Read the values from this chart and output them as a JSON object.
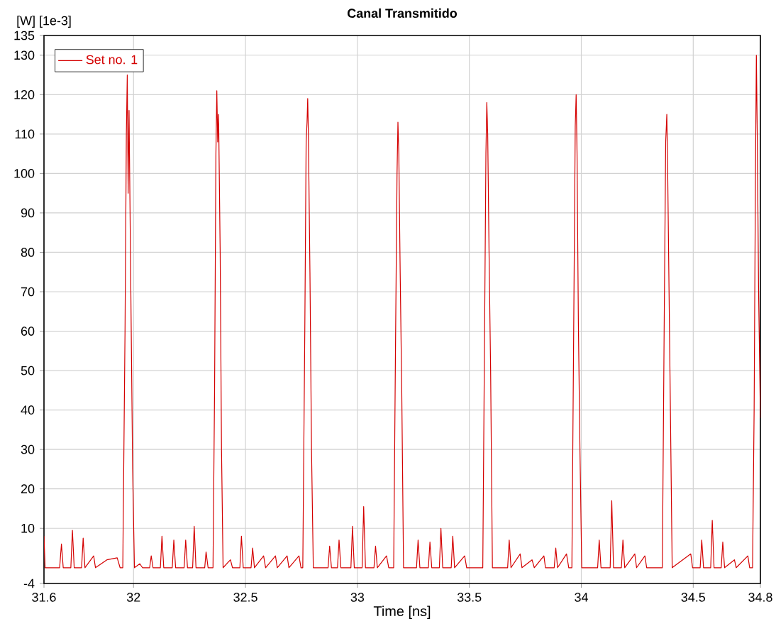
{
  "chart_data": {
    "type": "line",
    "title": "Canal Transmitido",
    "xlabel": "Time [ns]",
    "ylabel": "[W] [1e-3]",
    "xlim": [
      31.6,
      34.8
    ],
    "xticks": [
      31.6,
      32,
      32.5,
      33,
      33.5,
      34,
      34.5,
      34.8
    ],
    "ylim": [
      -4,
      135
    ],
    "yticks": [
      -4,
      10,
      20,
      30,
      40,
      50,
      60,
      70,
      80,
      90,
      100,
      110,
      120,
      130,
      135
    ],
    "grid": true,
    "legend": "top left",
    "series": [
      {
        "name": "Set no. 1",
        "color": "#d40000",
        "x": [
          31.6,
          31.605,
          31.67,
          31.678,
          31.686,
          31.72,
          31.727,
          31.735,
          31.768,
          31.775,
          31.783,
          31.822,
          31.83,
          31.881,
          31.927,
          31.94,
          31.952,
          31.962,
          31.968,
          31.972,
          31.976,
          31.98,
          31.988,
          31.996,
          32.004,
          32.028,
          32.04,
          32.072,
          32.079,
          32.087,
          32.12,
          32.127,
          32.135,
          32.173,
          32.18,
          32.188,
          32.226,
          32.233,
          32.241,
          32.264,
          32.271,
          32.279,
          32.318,
          32.324,
          32.333,
          32.355,
          32.362,
          32.368,
          32.372,
          32.376,
          32.38,
          32.387,
          32.393,
          32.4,
          32.433,
          32.442,
          32.475,
          32.482,
          32.49,
          32.525,
          32.532,
          32.54,
          32.581,
          32.59,
          32.634,
          32.642,
          32.686,
          32.694,
          32.739,
          32.748,
          32.756,
          32.765,
          32.771,
          32.775,
          32.778,
          32.781,
          32.788,
          32.795,
          32.803,
          32.869,
          32.876,
          32.884,
          32.911,
          32.918,
          32.926,
          32.971,
          32.978,
          32.986,
          33.021,
          33.028,
          33.036,
          33.074,
          33.081,
          33.089,
          33.13,
          33.14,
          33.162,
          33.17,
          33.177,
          33.181,
          33.185,
          33.191,
          33.198,
          33.206,
          33.264,
          33.271,
          33.279,
          33.317,
          33.324,
          33.332,
          33.366,
          33.373,
          33.381,
          33.419,
          33.426,
          33.434,
          33.479,
          33.488,
          33.56,
          33.568,
          33.574,
          33.578,
          33.582,
          33.588,
          33.595,
          33.603,
          33.671,
          33.678,
          33.686,
          33.727,
          33.735,
          33.78,
          33.79,
          33.833,
          33.84,
          33.879,
          33.886,
          33.894,
          33.934,
          33.944,
          33.958,
          33.966,
          33.973,
          33.977,
          33.981,
          33.987,
          33.994,
          34.002,
          34.073,
          34.08,
          34.088,
          34.129,
          34.136,
          34.144,
          34.179,
          34.186,
          34.194,
          34.239,
          34.247,
          34.284,
          34.292,
          34.362,
          34.37,
          34.377,
          34.382,
          34.386,
          34.392,
          34.398,
          34.406,
          34.489,
          34.497,
          34.531,
          34.538,
          34.546,
          34.578,
          34.585,
          34.593,
          34.625,
          34.632,
          34.64,
          34.684,
          34.692,
          34.744,
          34.752,
          34.765,
          34.772,
          34.778,
          34.782,
          34.786,
          34.792,
          34.8
        ],
        "values": [
          8,
          0,
          0,
          6,
          0,
          0,
          9.5,
          0,
          0,
          7.5,
          0,
          3,
          0,
          2,
          2.5,
          0,
          0,
          60,
          110,
          125,
          95,
          116,
          70,
          25,
          0,
          1,
          0,
          0,
          3,
          0,
          0,
          8,
          0,
          0,
          7,
          0,
          0,
          7,
          0,
          0,
          10.5,
          0,
          0,
          4,
          0,
          0,
          45,
          105,
          121,
          108,
          115,
          80,
          30,
          0,
          2,
          0,
          0,
          8,
          0,
          0,
          5,
          0,
          3,
          0,
          3,
          0,
          3,
          0,
          3,
          0,
          0,
          60,
          108,
          113,
          119,
          110,
          75,
          30,
          0,
          0,
          5.5,
          0,
          0,
          7,
          0,
          0,
          10.5,
          0,
          0,
          15.5,
          0,
          0,
          5.5,
          0,
          3,
          0,
          0,
          55,
          100,
          113,
          105,
          75,
          45,
          0,
          0,
          7,
          0,
          0,
          6.5,
          0,
          0,
          10,
          0,
          0,
          8,
          0,
          3,
          0,
          0,
          60,
          105,
          118,
          110,
          80,
          50,
          0,
          0,
          7,
          0,
          3.5,
          0,
          2,
          0,
          3,
          0,
          0,
          5,
          0,
          3.5,
          0,
          0,
          60,
          112,
          120,
          105,
          62,
          30,
          0,
          0,
          7,
          0,
          0,
          17,
          0,
          0,
          7,
          0,
          3.5,
          0,
          3,
          0,
          0,
          60,
          108,
          115,
          100,
          70,
          40,
          0,
          3.5,
          0,
          0,
          7,
          0,
          0,
          12,
          0,
          0,
          6.5,
          0,
          2,
          0,
          3,
          0,
          0,
          40,
          100,
          130,
          110,
          70,
          38
        ]
      }
    ]
  }
}
